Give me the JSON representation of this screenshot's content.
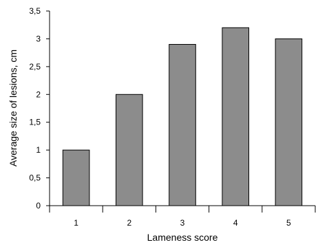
{
  "chart_data": {
    "type": "bar",
    "categories": [
      "1",
      "2",
      "3",
      "4",
      "5"
    ],
    "values": [
      1.0,
      2.0,
      2.9,
      3.2,
      3.0
    ],
    "xlabel": "Lameness score",
    "ylabel": "Average size of lesions, cm",
    "ylim": [
      0,
      3.5
    ],
    "yticks": [
      "0",
      "0,5",
      "1",
      "1,5",
      "2",
      "2,5",
      "3",
      "3,5"
    ],
    "ytick_values": [
      0,
      0.5,
      1,
      1.5,
      2,
      2.5,
      3,
      3.5
    ],
    "grid": false,
    "legend": "none",
    "bar_color": "#8c8c8c",
    "bar_edge_color": "#000000"
  }
}
